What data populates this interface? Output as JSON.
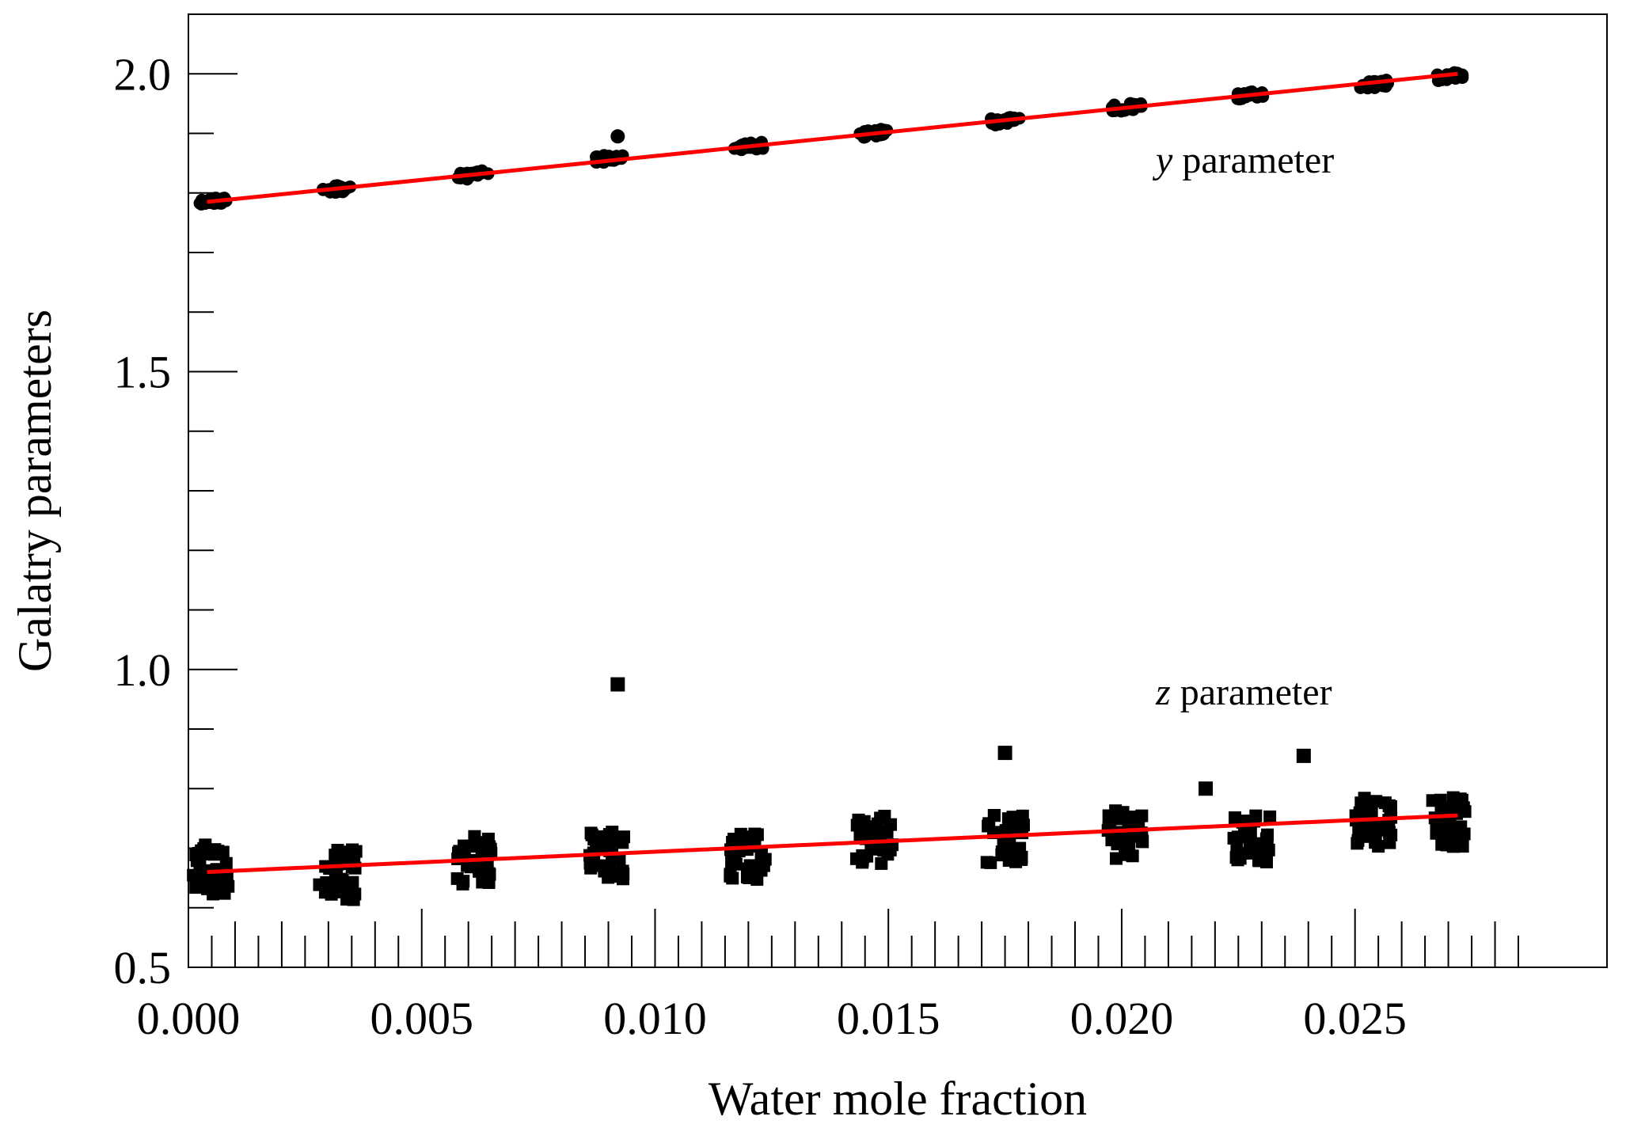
{
  "chart_data": {
    "type": "scatter",
    "title": "",
    "xlabel": "Water mole fraction",
    "ylabel": "Galatry parameters",
    "xlim": [
      0.0,
      0.0304
    ],
    "ylim": [
      0.5,
      2.1
    ],
    "xticks": [
      "0.000",
      "0.005",
      "0.010",
      "0.015",
      "0.020",
      "0.025"
    ],
    "yticks": [
      "0.5",
      "1.0",
      "1.5",
      "2.0"
    ],
    "grid": false,
    "annotations": [
      {
        "italic": "y",
        "text": " parameter"
      },
      {
        "italic": "z",
        "text": " parameter"
      }
    ],
    "series": [
      {
        "marker": "circle",
        "color": "#000000",
        "clusters": [
          {
            "x": 0.0005,
            "y": 1.785
          },
          {
            "x": 0.0032,
            "y": 1.807
          },
          {
            "x": 0.0061,
            "y": 1.83
          },
          {
            "x": 0.009,
            "y": 1.858
          },
          {
            "x": 0.012,
            "y": 1.878
          },
          {
            "x": 0.0147,
            "y": 1.9
          },
          {
            "x": 0.0175,
            "y": 1.921
          },
          {
            "x": 0.0201,
            "y": 1.944
          },
          {
            "x": 0.0228,
            "y": 1.965
          },
          {
            "x": 0.0254,
            "y": 1.982
          },
          {
            "x": 0.027,
            "y": 1.996
          }
        ],
        "outliers": [
          {
            "x": 0.0092,
            "y": 1.895
          }
        ],
        "fit": {
          "color": "#ff0000",
          "x": [
            0.0004,
            0.0272
          ],
          "y": [
            1.785,
            2.0
          ]
        }
      },
      {
        "marker": "square",
        "color": "#000000",
        "clusters": [
          {
            "x": 0.0005,
            "y": 0.665
          },
          {
            "x": 0.0032,
            "y": 0.655
          },
          {
            "x": 0.0061,
            "y": 0.68
          },
          {
            "x": 0.009,
            "y": 0.69
          },
          {
            "x": 0.012,
            "y": 0.69
          },
          {
            "x": 0.0147,
            "y": 0.715
          },
          {
            "x": 0.0175,
            "y": 0.715
          },
          {
            "x": 0.0201,
            "y": 0.725
          },
          {
            "x": 0.0228,
            "y": 0.715
          },
          {
            "x": 0.0254,
            "y": 0.745
          },
          {
            "x": 0.027,
            "y": 0.745
          }
        ],
        "outliers": [
          {
            "x": 0.0092,
            "y": 0.975
          },
          {
            "x": 0.0175,
            "y": 0.86
          },
          {
            "x": 0.0239,
            "y": 0.855
          },
          {
            "x": 0.0218,
            "y": 0.8
          }
        ],
        "fit": {
          "color": "#ff0000",
          "x": [
            0.0004,
            0.0272
          ],
          "y": [
            0.66,
            0.755
          ]
        }
      }
    ]
  }
}
